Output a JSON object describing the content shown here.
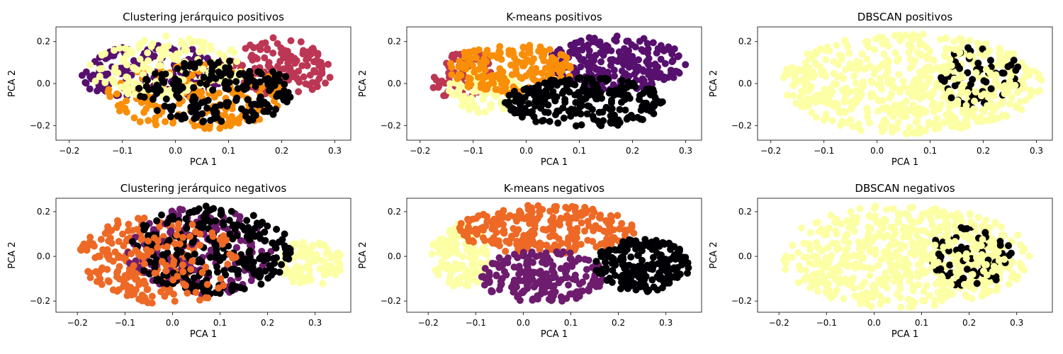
{
  "figure": {
    "palette": {
      "black": "#000004",
      "purple_dark": "#57106e",
      "purple": "#6e1c6e",
      "crimson": "#bc3754",
      "orange": "#f98e09",
      "orange_red": "#ed6925",
      "pale_yellow": "#fcffa4"
    }
  },
  "chart_data": [
    {
      "type": "scatter",
      "title": "Clustering jerárquico positivos",
      "xlabel": "PCA 1",
      "ylabel": "PCA 2",
      "xlim": [
        -0.225,
        0.33
      ],
      "ylim": [
        -0.27,
        0.27
      ],
      "xticks": [
        -0.2,
        -0.1,
        0.0,
        0.1,
        0.2,
        0.3
      ],
      "xticklabels": [
        "−0.2",
        "−0.1",
        "0.0",
        "0.1",
        "0.2",
        "0.3"
      ],
      "yticks": [
        -0.2,
        0.0,
        0.2
      ],
      "yticklabels": [
        "−0.2",
        "0.0",
        "0.2"
      ],
      "clusters": [
        {
          "color": "#57106e",
          "region": {
            "cx": -0.05,
            "cy": 0.06,
            "rx": 0.15,
            "ry": 0.13
          },
          "n": 170
        },
        {
          "color": "#bc3754",
          "region": {
            "cx": 0.2,
            "cy": 0.08,
            "rx": 0.1,
            "ry": 0.14
          },
          "n": 150
        },
        {
          "color": "#f98e09",
          "region": {
            "cx": 0.04,
            "cy": -0.06,
            "rx": 0.17,
            "ry": 0.16
          },
          "n": 190
        },
        {
          "color": "#fcffa4",
          "region": {
            "cx": -0.02,
            "cy": 0.08,
            "rx": 0.15,
            "ry": 0.15
          },
          "n": 160
        },
        {
          "color": "#000004",
          "region": {
            "cx": 0.08,
            "cy": -0.04,
            "rx": 0.15,
            "ry": 0.15
          },
          "n": 190
        }
      ]
    },
    {
      "type": "scatter",
      "title": "K-means positivos",
      "xlabel": "PCA 1",
      "ylabel": "PCA 2",
      "xlim": [
        -0.225,
        0.33
      ],
      "ylim": [
        -0.27,
        0.27
      ],
      "xticks": [
        -0.2,
        -0.1,
        0.0,
        0.1,
        0.2,
        0.3
      ],
      "xticklabels": [
        "−0.2",
        "−0.1",
        "0.0",
        "0.1",
        "0.2",
        "0.3"
      ],
      "yticks": [
        -0.2,
        0.0,
        0.2
      ],
      "yticklabels": [
        "−0.2",
        "0.0",
        "0.2"
      ],
      "clusters": [
        {
          "color": "#57106e",
          "region": {
            "cx": 0.17,
            "cy": 0.1,
            "rx": 0.13,
            "ry": 0.13
          },
          "n": 230
        },
        {
          "color": "#bc3754",
          "region": {
            "cx": -0.13,
            "cy": 0.05,
            "rx": 0.07,
            "ry": 0.12
          },
          "n": 100
        },
        {
          "color": "#fcffa4",
          "region": {
            "cx": -0.08,
            "cy": -0.04,
            "rx": 0.07,
            "ry": 0.1
          },
          "n": 90
        },
        {
          "color": "#f98e09",
          "region": {
            "cx": -0.03,
            "cy": 0.07,
            "rx": 0.12,
            "ry": 0.12
          },
          "n": 180
        },
        {
          "color": "#000004",
          "region": {
            "cx": 0.11,
            "cy": -0.09,
            "rx": 0.15,
            "ry": 0.12
          },
          "n": 240
        }
      ]
    },
    {
      "type": "scatter",
      "title": "DBSCAN positivos",
      "xlabel": "PCA 1",
      "ylabel": "PCA 2",
      "xlim": [
        -0.225,
        0.33
      ],
      "ylim": [
        -0.27,
        0.27
      ],
      "xticks": [
        -0.2,
        -0.1,
        0.0,
        0.1,
        0.2,
        0.3
      ],
      "xticklabels": [
        "−0.2",
        "−0.1",
        "0.0",
        "0.1",
        "0.2",
        "0.3"
      ],
      "yticks": [
        -0.2,
        0.0,
        0.2
      ],
      "yticklabels": [
        "−0.2",
        "0.0",
        "0.2"
      ],
      "clusters": [
        {
          "color": "#fcffa4",
          "region": {
            "cx": 0.05,
            "cy": 0.0,
            "rx": 0.26,
            "ry": 0.24
          },
          "n": 600
        },
        {
          "color": "#000004",
          "region": {
            "cx": 0.2,
            "cy": 0.03,
            "rx": 0.08,
            "ry": 0.16
          },
          "n": 60
        },
        {
          "color": "#fcffa4",
          "region": {
            "cx": 0.17,
            "cy": 0.0,
            "rx": 0.1,
            "ry": 0.18
          },
          "n": 60
        }
      ]
    },
    {
      "type": "scatter",
      "title": "Clustering jerárquico negativos",
      "xlabel": "PCA 1",
      "ylabel": "PCA 2",
      "xlim": [
        -0.245,
        0.375
      ],
      "ylim": [
        -0.25,
        0.26
      ],
      "xticks": [
        -0.2,
        -0.1,
        0.0,
        0.1,
        0.2,
        0.3
      ],
      "xticklabels": [
        "−0.2",
        "−0.1",
        "0.0",
        "0.1",
        "0.2",
        "0.3"
      ],
      "yticks": [
        -0.2,
        0.0,
        0.2
      ],
      "yticklabels": [
        "−0.2",
        "0.0",
        "0.2"
      ],
      "clusters": [
        {
          "color": "#fcffa4",
          "region": {
            "cx": 0.29,
            "cy": -0.03,
            "rx": 0.07,
            "ry": 0.1
          },
          "n": 90
        },
        {
          "color": "#ed6925",
          "region": {
            "cx": -0.08,
            "cy": -0.02,
            "rx": 0.13,
            "ry": 0.2
          },
          "n": 230
        },
        {
          "color": "#6e1c6e",
          "region": {
            "cx": 0.06,
            "cy": 0.02,
            "rx": 0.16,
            "ry": 0.2
          },
          "n": 170
        },
        {
          "color": "#000004",
          "region": {
            "cx": 0.08,
            "cy": 0.03,
            "rx": 0.17,
            "ry": 0.2
          },
          "n": 260
        },
        {
          "color": "#ed6925",
          "region": {
            "cx": 0.02,
            "cy": -0.03,
            "rx": 0.12,
            "ry": 0.18
          },
          "n": 70
        }
      ]
    },
    {
      "type": "scatter",
      "title": "K-means negativos",
      "xlabel": "PCA 1",
      "ylabel": "PCA 2",
      "xlim": [
        -0.245,
        0.375
      ],
      "ylim": [
        -0.25,
        0.26
      ],
      "xticks": [
        -0.2,
        -0.1,
        0.0,
        0.1,
        0.2,
        0.3
      ],
      "xticklabels": [
        "−0.2",
        "−0.1",
        "0.0",
        "0.1",
        "0.2",
        "0.3"
      ],
      "yticks": [
        -0.2,
        0.0,
        0.2
      ],
      "yticklabels": [
        "−0.2",
        "0.0",
        "0.2"
      ],
      "clusters": [
        {
          "color": "#fcffa4",
          "region": {
            "cx": -0.15,
            "cy": 0.0,
            "rx": 0.08,
            "ry": 0.17
          },
          "n": 190
        },
        {
          "color": "#ed6925",
          "region": {
            "cx": 0.05,
            "cy": 0.12,
            "rx": 0.19,
            "ry": 0.11
          },
          "n": 250
        },
        {
          "color": "#6e1c6e",
          "region": {
            "cx": 0.04,
            "cy": -0.09,
            "rx": 0.13,
            "ry": 0.12
          },
          "n": 200
        },
        {
          "color": "#000004",
          "region": {
            "cx": 0.25,
            "cy": -0.04,
            "rx": 0.1,
            "ry": 0.12
          },
          "n": 220
        }
      ]
    },
    {
      "type": "scatter",
      "title": "DBSCAN negativos",
      "xlabel": "PCA 1",
      "ylabel": "PCA 2",
      "xlim": [
        -0.245,
        0.375
      ],
      "ylim": [
        -0.25,
        0.26
      ],
      "xticks": [
        -0.2,
        -0.1,
        0.0,
        0.1,
        0.2,
        0.3
      ],
      "xticklabels": [
        "−0.2",
        "−0.1",
        "0.0",
        "0.1",
        "0.2",
        "0.3"
      ],
      "yticks": [
        -0.2,
        0.0,
        0.2
      ],
      "yticklabels": [
        "−0.2",
        "0.0",
        "0.2"
      ],
      "clusters": [
        {
          "color": "#fcffa4",
          "region": {
            "cx": 0.05,
            "cy": 0.0,
            "rx": 0.28,
            "ry": 0.23
          },
          "n": 620
        },
        {
          "color": "#000004",
          "region": {
            "cx": 0.2,
            "cy": 0.0,
            "rx": 0.09,
            "ry": 0.14
          },
          "n": 70
        },
        {
          "color": "#fcffa4",
          "region": {
            "cx": 0.18,
            "cy": 0.0,
            "rx": 0.1,
            "ry": 0.16
          },
          "n": 60
        }
      ]
    }
  ]
}
